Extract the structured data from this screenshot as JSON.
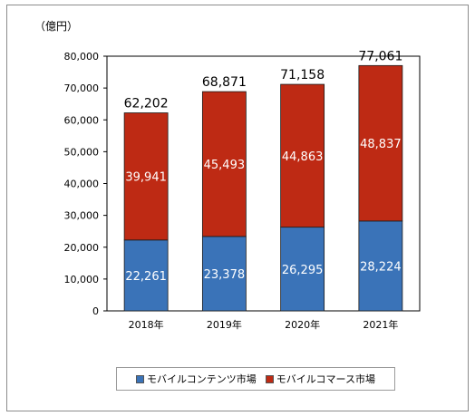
{
  "chart_data": {
    "type": "bar",
    "stacked": true,
    "y_unit_label": "（億円）",
    "categories": [
      "2018年",
      "2019年",
      "2020年",
      "2021年"
    ],
    "series": [
      {
        "name": "モバイルコンテンツ市場",
        "color": "#3a73b8",
        "values": [
          22261,
          23378,
          26295,
          28224
        ]
      },
      {
        "name": "モバイルコマース市場",
        "color": "#be2a14",
        "values": [
          39941,
          45493,
          44863,
          48837
        ]
      }
    ],
    "totals": [
      62202,
      68871,
      71158,
      77061
    ],
    "ylim": [
      0,
      80000
    ],
    "yticks": [
      0,
      10000,
      20000,
      30000,
      40000,
      50000,
      60000,
      70000,
      80000
    ],
    "grid": false,
    "legend_position": "bottom"
  }
}
